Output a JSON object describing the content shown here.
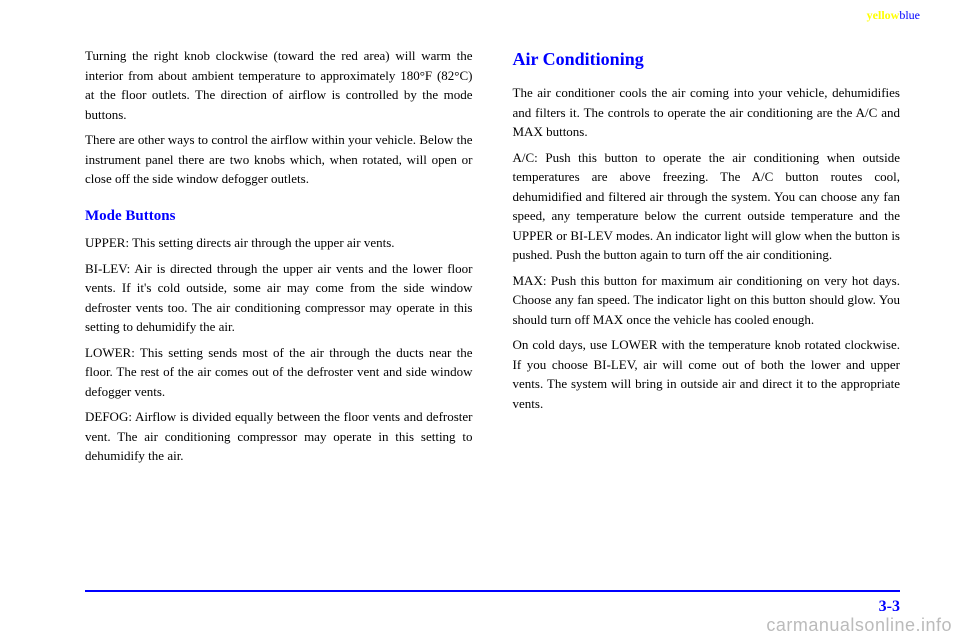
{
  "header": {
    "yellow_text": "yellow",
    "blue_text": "blue"
  },
  "left_column": {
    "para1": "Turning the right knob clockwise (toward the red area) will warm the interior from about ambient temperature to approximately 180°F (82°C) at the floor outlets. The direction of airflow is controlled by the mode buttons.",
    "para2": "There are other ways to control the airflow within your vehicle. Below the instrument panel there are two knobs which, when rotated, will open or close off the side window defogger outlets.",
    "heading": "Mode Buttons",
    "para3": "UPPER: This setting directs air through the upper air vents.",
    "para4": "BI-LEV: Air is directed through the upper air vents and the lower floor vents. If it's cold outside, some air may come from the side window defroster vents too. The air conditioning compressor may operate in this setting to dehumidify the air.",
    "para5": "LOWER: This setting sends most of the air through the ducts near the floor. The rest of the air comes out of the defroster vent and side window defogger vents.",
    "para6": "DEFOG: Airflow is divided equally between the floor vents and defroster vent. The air conditioning compressor may operate in this setting to dehumidify the air."
  },
  "right_column": {
    "heading": "Air Conditioning",
    "para1": "The air conditioner cools the air coming into your vehicle, dehumidifies and filters it. The controls to operate the air conditioning are the A/C and MAX buttons.",
    "para2": "A/C: Push this button to operate the air conditioning when outside temperatures are above freezing. The A/C button routes cool, dehumidified and filtered air through the system. You can choose any fan speed, any temperature below the current outside temperature and the UPPER or BI-LEV modes. An indicator light will glow when the button is pushed. Push the button again to turn off the air conditioning.",
    "para3": "MAX: Push this button for maximum air conditioning on very hot days. Choose any fan speed. The indicator light on this button should glow. You should turn off MAX once the vehicle has cooled enough.",
    "para4": "On cold days, use LOWER with the temperature knob rotated clockwise. If you choose BI-LEV, air will come out of both the lower and upper vents. The system will bring in outside air and direct it to the appropriate vents."
  },
  "footer": {
    "page_number": "3-3",
    "watermark": "carmanualsonline.info"
  },
  "colors": {
    "heading_color": "#0000ff",
    "rule_color": "#0000ff",
    "page_number_color": "#0000ff",
    "header_yellow": "#ffff00",
    "watermark_color": "#bbbbbb",
    "body_text": "#000000",
    "background": "#ffffff"
  }
}
